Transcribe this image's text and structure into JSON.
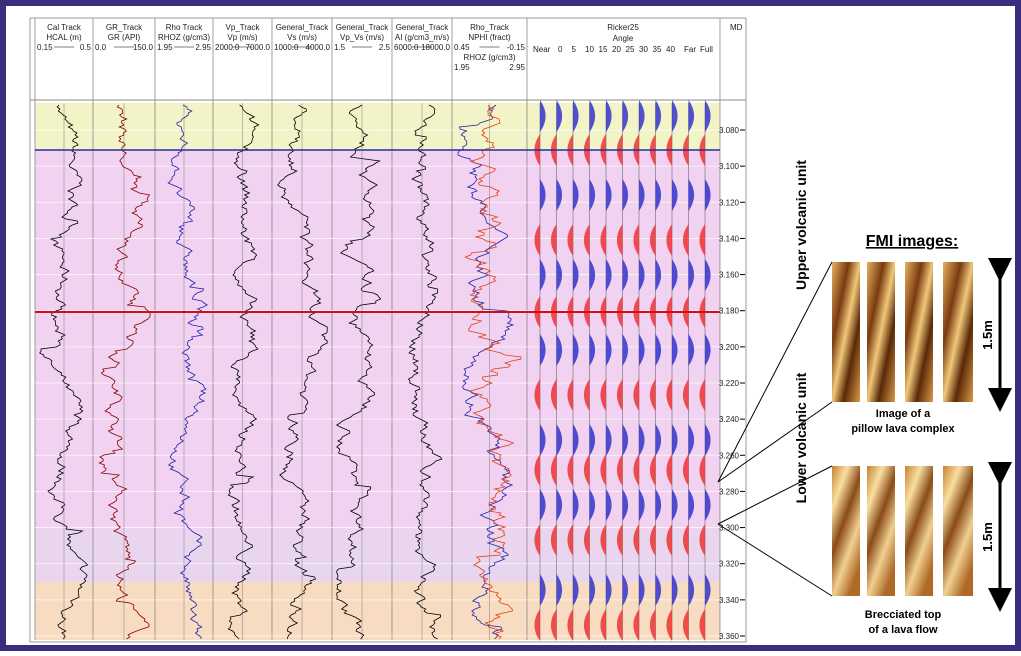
{
  "header": {
    "tracks": [
      {
        "name": "Cal Track",
        "curve": "HCAL (m)",
        "min": "0.15",
        "max": "0.5"
      },
      {
        "name": "GR_Track",
        "curve": "GR (API)",
        "min": "0.0",
        "max": "150.0"
      },
      {
        "name": "Rho Track",
        "curve": "RHOZ (g/cm3)",
        "min": "1.95",
        "max": "2.95"
      },
      {
        "name": "Vp_Track",
        "curve": "Vp (m/s)",
        "min": "2000.0",
        "max": "7000.0"
      },
      {
        "name": "General_Track",
        "curve": "Vs (m/s)",
        "min": "1000.0",
        "max": "4000.0"
      },
      {
        "name": "General_Track",
        "curve": "Vp_Vs (m/s)",
        "min": "1.5",
        "max": "2.5"
      },
      {
        "name": "General_Track",
        "curve": "AI (g/cm3_m/s)",
        "min": "6000.0",
        "max": "18000.0"
      },
      {
        "name": "Rho_Track",
        "curve": "NPHI (fract)",
        "min": "0.45",
        "max": "-0.15",
        "curve2": "RHOZ (g/cm3)",
        "min2": "1.95",
        "max2": "2.95"
      }
    ],
    "ricker": {
      "name": "Ricker25",
      "axis": "Angle",
      "near": "Near",
      "angles": [
        "0",
        "5",
        "10",
        "15",
        "20",
        "25",
        "30",
        "35",
        "40"
      ],
      "far": "Far",
      "full": "Full"
    },
    "md": "MD"
  },
  "depth_axis": {
    "ticks": [
      {
        "value": 3.08,
        "label": "3.080"
      },
      {
        "value": 3.1,
        "label": "3.100"
      },
      {
        "value": 3.12,
        "label": "3.120"
      },
      {
        "value": 3.14,
        "label": "3.140"
      },
      {
        "value": 3.16,
        "label": "3.160"
      },
      {
        "value": 3.18,
        "label": "3.180"
      },
      {
        "value": 3.2,
        "label": "3.200"
      },
      {
        "value": 3.22,
        "label": "3.220"
      },
      {
        "value": 3.24,
        "label": "3.240"
      },
      {
        "value": 3.26,
        "label": "3.260"
      },
      {
        "value": 3.28,
        "label": "3.280"
      },
      {
        "value": 3.3,
        "label": "3.300"
      },
      {
        "value": 3.32,
        "label": "3.320"
      },
      {
        "value": 3.34,
        "label": "3.340"
      },
      {
        "value": 3.36,
        "label": "3.360"
      }
    ]
  },
  "annotations": {
    "upper": "Upper volcanic unit",
    "lower": "Lower volcanic unit",
    "fmi_title": "FMI images:",
    "image1": {
      "line1": "Image of a",
      "line2": "pillow lava complex",
      "scale": "1.5m"
    },
    "image2": {
      "line1": "Brecciated top",
      "line2": "of a lava flow",
      "scale": "1.5m"
    }
  }
}
